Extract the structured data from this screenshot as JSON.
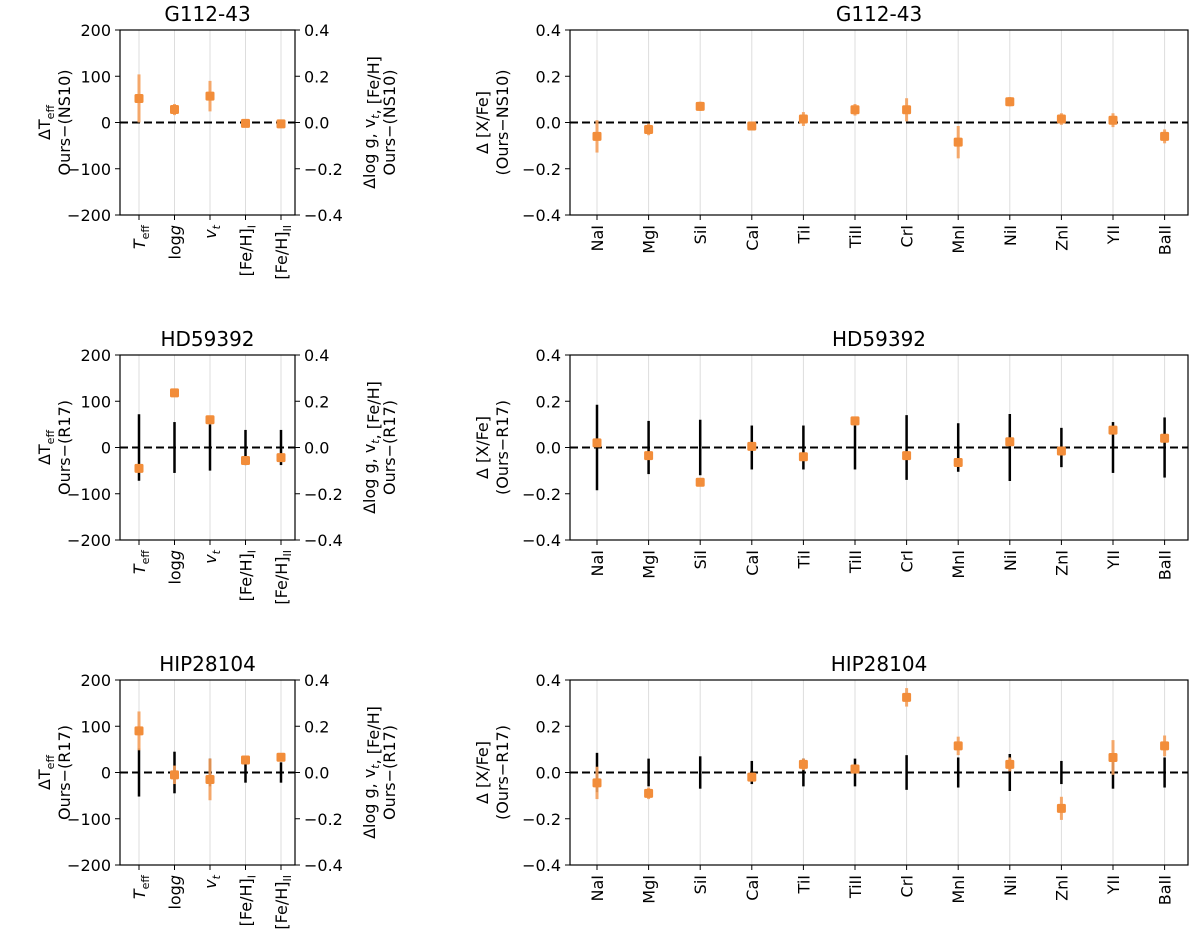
{
  "chart_data": [
    {
      "type": "scatter",
      "title": "G112-43",
      "categories": [
        "T_eff",
        "log g",
        "v_t",
        "[Fe/H]_I",
        "[Fe/H]_II"
      ],
      "ylabel": [
        "ΔT_eff",
        "Ours−(NS10)"
      ],
      "ylabel_right": [
        "Δlog g, v_t, [Fe/H]",
        "Ours−(NS10)"
      ],
      "ylim": [
        -200,
        200
      ],
      "ylim_right": [
        -0.4,
        0.4
      ],
      "yticks": [
        "200",
        "100",
        "0",
        "−100",
        "−200"
      ],
      "yticks_right": [
        "0.4",
        "0.2",
        "0.0",
        "−0.2",
        "−0.4"
      ],
      "ours": [
        {
          "value": 52,
          "err": 52
        },
        {
          "value": 28,
          "err": 12
        },
        {
          "value": 57,
          "err": 33
        },
        {
          "value": -2,
          "err": 5
        },
        {
          "value": -3,
          "err": 5
        }
      ],
      "ref_err": [
        0,
        0,
        0,
        0,
        0
      ]
    },
    {
      "type": "scatter",
      "title": "G112-43",
      "categories": [
        "NaI",
        "MgI",
        "SiI",
        "CaI",
        "TiI",
        "TiII",
        "CrI",
        "MnI",
        "NiI",
        "ZnI",
        "YII",
        "BaII"
      ],
      "ylabel": [
        "Δ [X/Fe]",
        "(Ours−NS10)"
      ],
      "ylim": [
        -0.4,
        0.4
      ],
      "yticks": [
        "0.4",
        "0.2",
        "0.0",
        "−0.2",
        "−0.4"
      ],
      "ours": [
        {
          "value": -0.06,
          "err": 0.07
        },
        {
          "value": -0.03,
          "err": 0.025
        },
        {
          "value": 0.07,
          "err": 0.02
        },
        {
          "value": -0.015,
          "err": 0.015
        },
        {
          "value": 0.015,
          "err": 0.03
        },
        {
          "value": 0.055,
          "err": 0.025
        },
        {
          "value": 0.055,
          "err": 0.05
        },
        {
          "value": -0.085,
          "err": 0.07
        },
        {
          "value": 0.09,
          "err": 0.02
        },
        {
          "value": 0.015,
          "err": 0.025
        },
        {
          "value": 0.01,
          "err": 0.03
        },
        {
          "value": -0.06,
          "err": 0.03
        }
      ],
      "ref_err": [
        0,
        0,
        0,
        0,
        0,
        0,
        0,
        0,
        0,
        0,
        0,
        0
      ]
    },
    {
      "type": "scatter",
      "title": "HD59392",
      "categories": [
        "T_eff",
        "log g",
        "v_t",
        "[Fe/H]_I",
        "[Fe/H]_II"
      ],
      "ylabel": [
        "ΔT_eff",
        "Ours−(R17)"
      ],
      "ylabel_right": [
        "Δlog g, v_t, [Fe/H]",
        "Ours−(R17)"
      ],
      "ylim": [
        -200,
        200
      ],
      "ylim_right": [
        -0.4,
        0.4
      ],
      "yticks": [
        "200",
        "100",
        "0",
        "−100",
        "−200"
      ],
      "yticks_right": [
        "0.4",
        "0.2",
        "0.0",
        "−0.2",
        "−0.4"
      ],
      "ours": [
        {
          "value": -45,
          "err": 8
        },
        {
          "value": 118,
          "err": 8
        },
        {
          "value": 60,
          "err": 8
        },
        {
          "value": -28,
          "err": 8
        },
        {
          "value": -22,
          "err": 8
        }
      ],
      "ref_err": [
        72,
        55,
        50,
        38,
        38
      ]
    },
    {
      "type": "scatter",
      "title": "HD59392",
      "categories": [
        "NaI",
        "MgI",
        "SiI",
        "CaI",
        "TiI",
        "TiII",
        "CrI",
        "MnI",
        "NiI",
        "ZnI",
        "YII",
        "BaII"
      ],
      "ylabel": [
        "Δ [X/Fe]",
        "(Ours−R17)"
      ],
      "ylim": [
        -0.4,
        0.4
      ],
      "yticks": [
        "0.4",
        "0.2",
        "0.0",
        "−0.2",
        "−0.4"
      ],
      "ours": [
        {
          "value": 0.02,
          "err": 0.01
        },
        {
          "value": -0.035,
          "err": 0.01
        },
        {
          "value": -0.15,
          "err": 0.01
        },
        {
          "value": 0.005,
          "err": 0.01
        },
        {
          "value": -0.04,
          "err": 0.01
        },
        {
          "value": 0.115,
          "err": 0.01
        },
        {
          "value": -0.035,
          "err": 0.01
        },
        {
          "value": -0.065,
          "err": 0.01
        },
        {
          "value": 0.025,
          "err": 0.01
        },
        {
          "value": -0.015,
          "err": 0.01
        },
        {
          "value": 0.075,
          "err": 0.01
        },
        {
          "value": 0.04,
          "err": 0.01
        }
      ],
      "ref_err": [
        0.185,
        0.115,
        0.12,
        0.095,
        0.095,
        0.095,
        0.14,
        0.105,
        0.145,
        0.085,
        0.11,
        0.13
      ]
    },
    {
      "type": "scatter",
      "title": "HIP28104",
      "categories": [
        "T_eff",
        "log g",
        "v_t",
        "[Fe/H]_I",
        "[Fe/H]_II"
      ],
      "ylabel": [
        "ΔT_eff",
        "Ours−(R17)"
      ],
      "ylabel_right": [
        "Δlog g, v_t, [Fe/H]",
        "Ours−(R17)"
      ],
      "ylim": [
        -200,
        200
      ],
      "ylim_right": [
        -0.4,
        0.4
      ],
      "yticks": [
        "200",
        "100",
        "0",
        "−100",
        "−200"
      ],
      "yticks_right": [
        "0.4",
        "0.2",
        "0.0",
        "−0.2",
        "−0.4"
      ],
      "ours": [
        {
          "value": 90,
          "err": 42
        },
        {
          "value": -5,
          "err": 20
        },
        {
          "value": -15,
          "err": 45
        },
        {
          "value": 27,
          "err": 8
        },
        {
          "value": 33,
          "err": 8
        }
      ],
      "ref_err": [
        52,
        45,
        30,
        22,
        22
      ]
    },
    {
      "type": "scatter",
      "title": "HIP28104",
      "categories": [
        "NaI",
        "MgI",
        "SiI",
        "CaI",
        "TiI",
        "TiII",
        "CrI",
        "MnI",
        "NiI",
        "ZnI",
        "YII",
        "BaII"
      ],
      "ylabel": [
        "Δ [X/Fe]",
        "(Ours−R17)"
      ],
      "ylim": [
        -0.4,
        0.4
      ],
      "yticks": [
        "0.4",
        "0.2",
        "0.0",
        "−0.2",
        "−0.4"
      ],
      "ours": [
        {
          "value": -0.045,
          "err": 0.07
        },
        {
          "value": -0.09,
          "err": 0.025
        },
        {
          "value": null,
          "err": 0
        },
        {
          "value": -0.02,
          "err": 0.015
        },
        {
          "value": 0.035,
          "err": 0.025
        },
        {
          "value": 0.015,
          "err": 0.02
        },
        {
          "value": 0.325,
          "err": 0.04
        },
        {
          "value": 0.115,
          "err": 0.04
        },
        {
          "value": 0.035,
          "err": 0.03
        },
        {
          "value": -0.155,
          "err": 0.05
        },
        {
          "value": 0.065,
          "err": 0.075
        },
        {
          "value": 0.115,
          "err": 0.045
        }
      ],
      "ref_err": [
        0.085,
        0.06,
        0.07,
        0.05,
        0.06,
        0.06,
        0.075,
        0.065,
        0.08,
        0.05,
        0.07,
        0.065
      ]
    }
  ]
}
